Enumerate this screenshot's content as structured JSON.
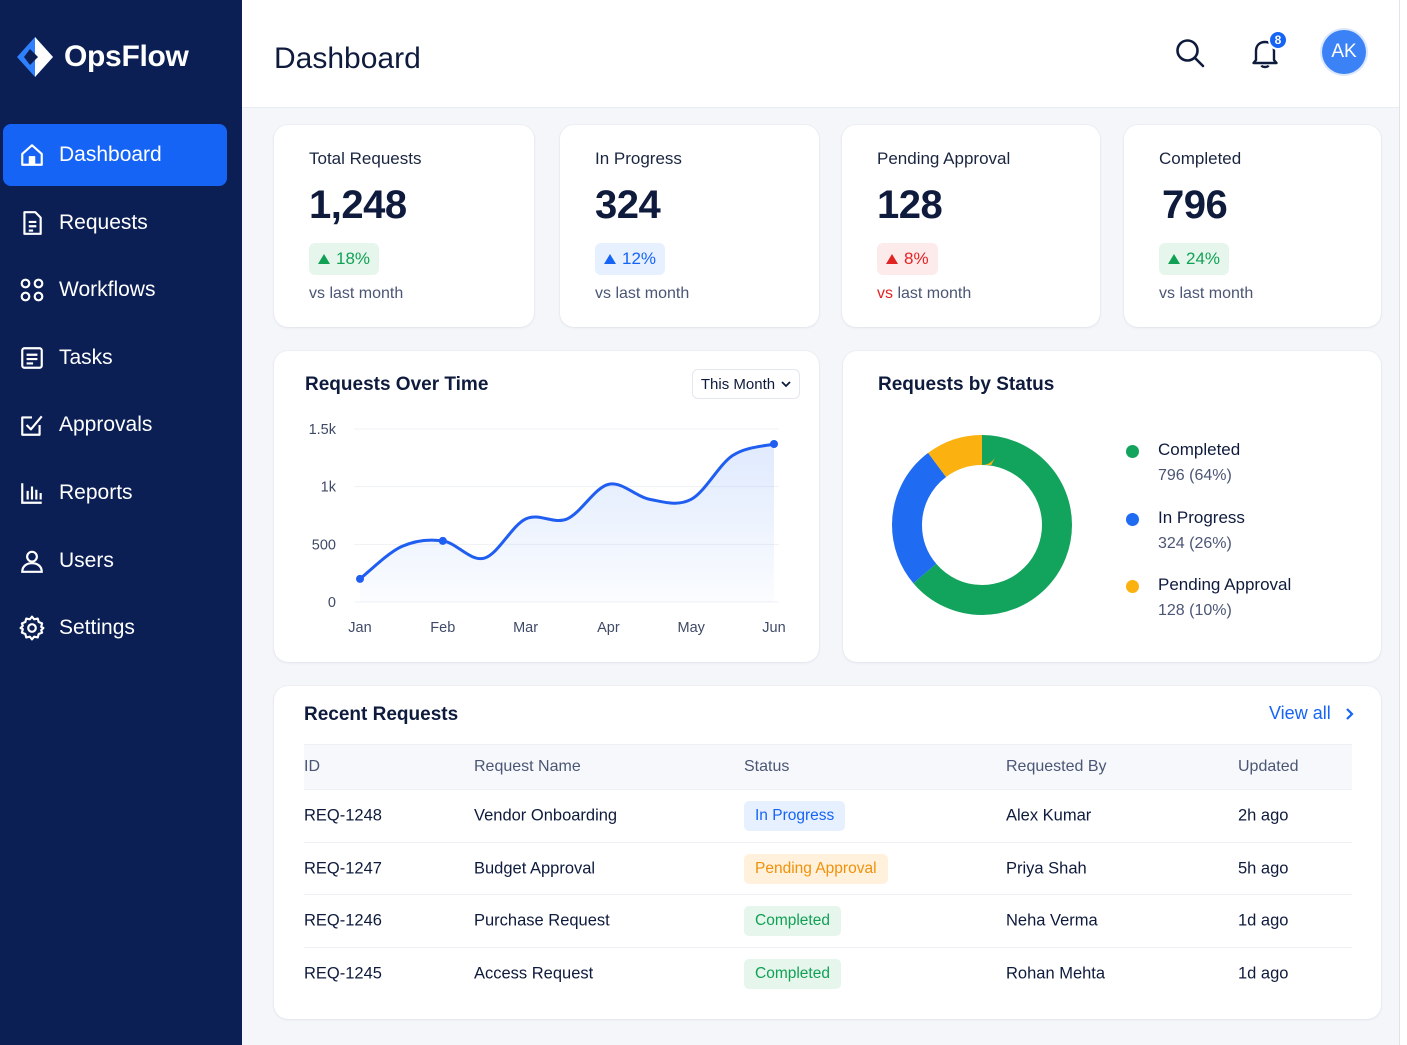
{
  "app": {
    "name": "OpsFlow"
  },
  "sidebar": {
    "items": [
      {
        "label": "Dashboard",
        "icon": "home-icon",
        "active": true
      },
      {
        "label": "Requests",
        "icon": "document-icon"
      },
      {
        "label": "Workflows",
        "icon": "grid-dots-icon"
      },
      {
        "label": "Tasks",
        "icon": "tasks-icon"
      },
      {
        "label": "Approvals",
        "icon": "approval-check-icon"
      },
      {
        "label": "Reports",
        "icon": "bar-chart-icon"
      },
      {
        "label": "Users",
        "icon": "user-icon"
      },
      {
        "label": "Settings",
        "icon": "gear-icon"
      }
    ]
  },
  "header": {
    "title": "Dashboard",
    "notifications_count": "8",
    "avatar_initials": "AK"
  },
  "stats": [
    {
      "label": "Total Requests",
      "value": "1,248",
      "change": "18%",
      "trend": "up",
      "tone": "green",
      "sub": "vs last month"
    },
    {
      "label": "In Progress",
      "value": "324",
      "change": "12%",
      "trend": "up",
      "tone": "blue",
      "sub": "vs last month"
    },
    {
      "label": "Pending Approval",
      "value": "128",
      "change": "8%",
      "trend": "up",
      "tone": "red",
      "sub_prefix": "vs",
      "sub": "last month"
    },
    {
      "label": "Completed",
      "value": "796",
      "change": "24%",
      "trend": "up",
      "tone": "green",
      "sub": "vs last month"
    }
  ],
  "requests_over_time": {
    "title": "Requests Over Time",
    "range_select": "This Month",
    "chart_data": {
      "type": "line",
      "categories": [
        "Jan",
        "Feb",
        "Mar",
        "Apr",
        "May",
        "Jun"
      ],
      "yticks": [
        "0",
        "500",
        "1k",
        "1.5k"
      ],
      "ylim": [
        0,
        1500
      ],
      "x": [
        0,
        0.5,
        1,
        1.5,
        2,
        2.5,
        3,
        3.5,
        4,
        4.5,
        5
      ],
      "values": [
        200,
        480,
        530,
        380,
        720,
        720,
        1020,
        890,
        890,
        1270,
        1370
      ]
    }
  },
  "requests_by_status": {
    "title": "Requests by Status",
    "chart_data": {
      "type": "pie",
      "labels": [
        "Completed",
        "In Progress",
        "Pending Approval"
      ],
      "values": [
        796,
        324,
        128
      ],
      "percent_labels": [
        "796 (64%)",
        "324 (26%)",
        "128 (10%)"
      ],
      "colors": [
        "#12a35c",
        "#1f6bf2",
        "#fbb10f"
      ]
    }
  },
  "recent": {
    "title": "Recent Requests",
    "view_all": "View all",
    "columns": [
      "ID",
      "Request Name",
      "Status",
      "Requested By",
      "Updated"
    ],
    "rows": [
      {
        "id": "REQ-1248",
        "name": "Vendor Onboarding",
        "status": "In Progress",
        "tone": "blue",
        "by": "Alex Kumar",
        "updated": "2h ago"
      },
      {
        "id": "REQ-1247",
        "name": "Budget Approval",
        "status": "Pending Approval",
        "tone": "orange",
        "by": "Priya Shah",
        "updated": "5h ago"
      },
      {
        "id": "REQ-1246",
        "name": "Purchase Request",
        "status": "Completed",
        "tone": "green",
        "by": "Neha Verma",
        "updated": "1d ago"
      },
      {
        "id": "REQ-1245",
        "name": "Access Request",
        "status": "Completed",
        "tone": "green",
        "by": "Rohan Mehta",
        "updated": "1d ago"
      }
    ]
  }
}
